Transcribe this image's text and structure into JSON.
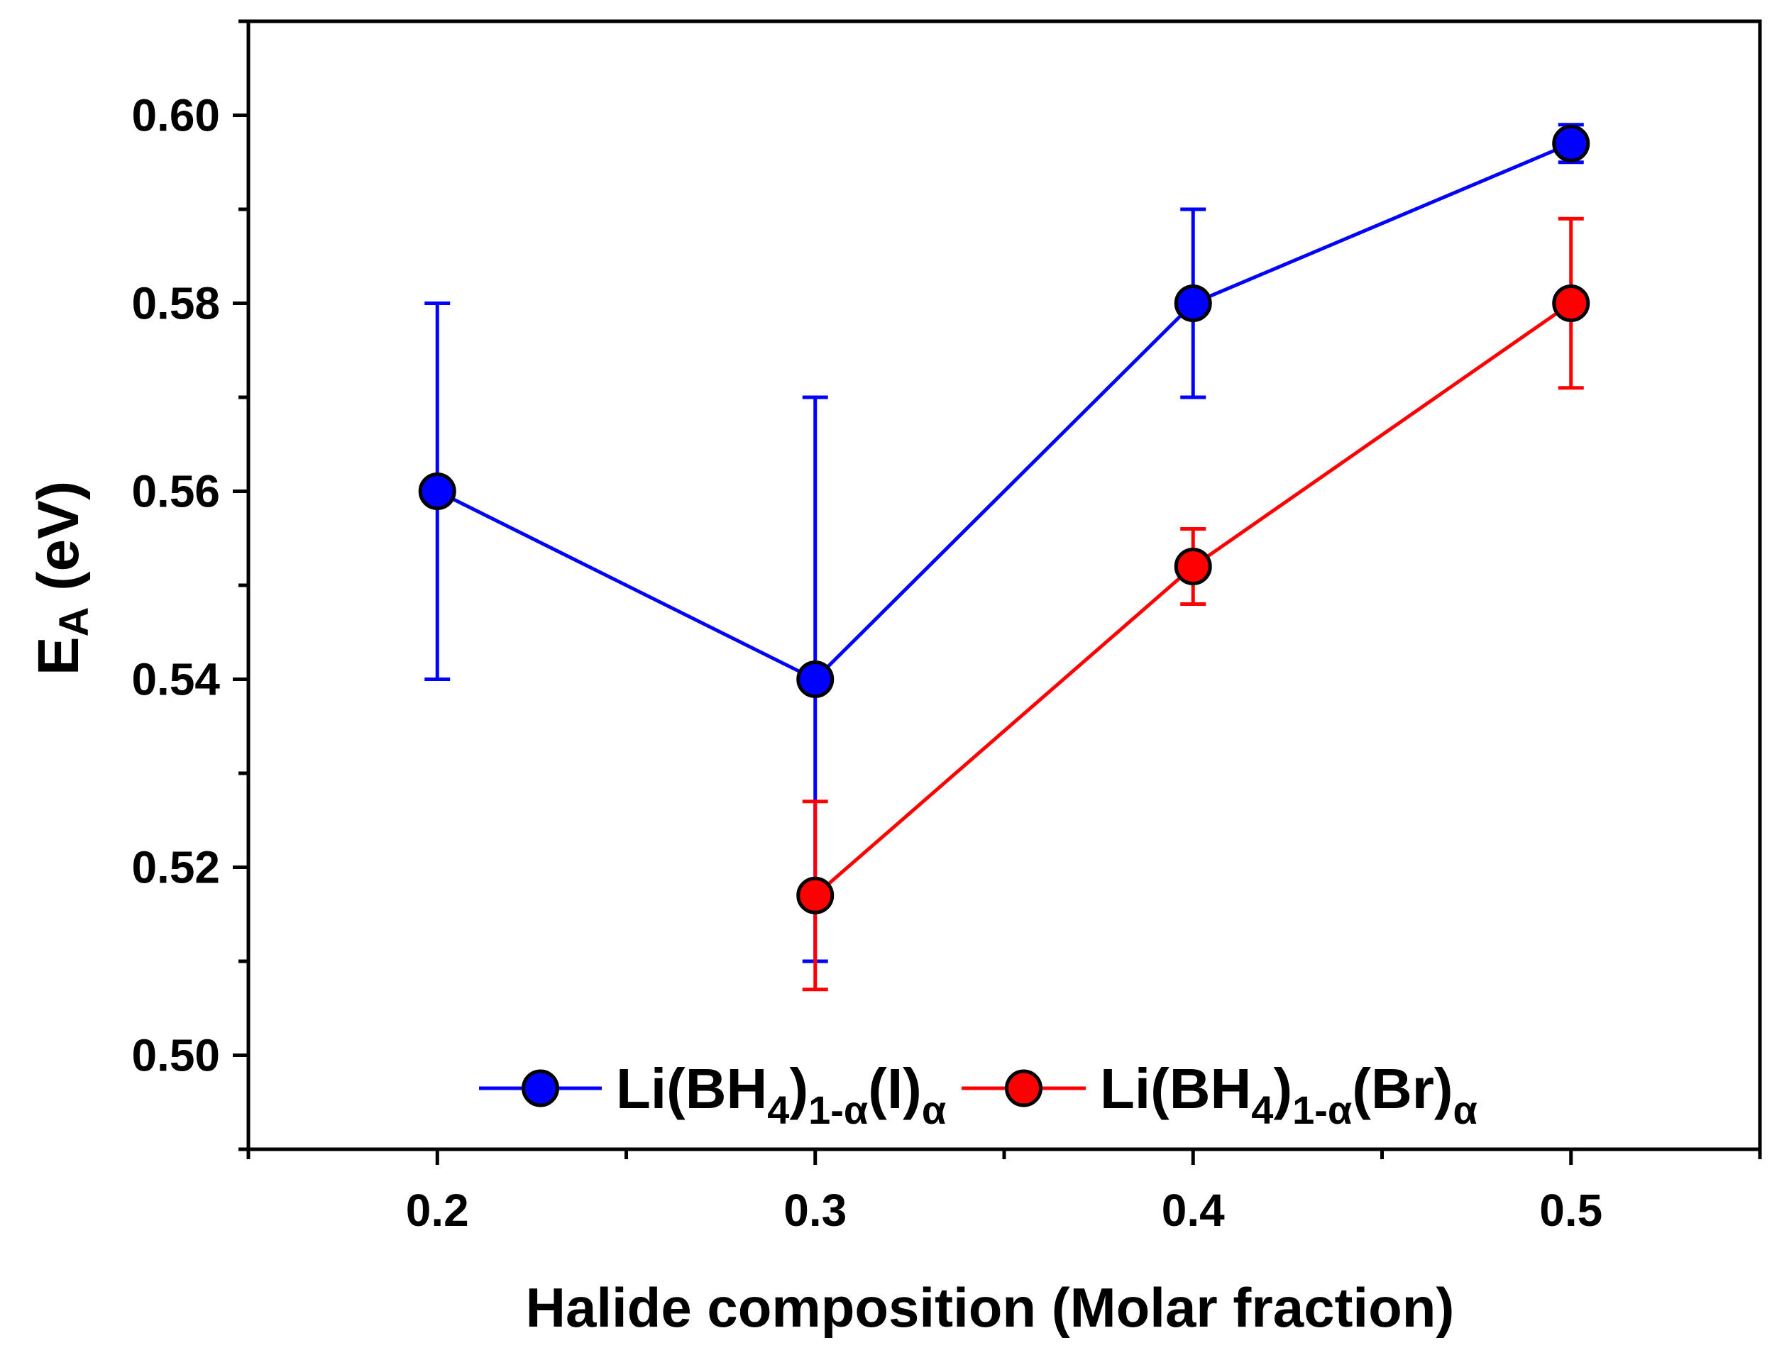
{
  "chart_data": {
    "type": "line",
    "title": "",
    "xlabel": "Halide composition (Molar fraction)",
    "ylabel": "E_A (eV)",
    "ylabel_main": "E",
    "ylabel_sub": "A",
    "ylabel_rest": " (eV)",
    "xlim": [
      0.15,
      0.55
    ],
    "ylim": [
      0.49,
      0.61
    ],
    "x_ticks": [
      0.2,
      0.3,
      0.4,
      0.5
    ],
    "x_tick_labels": [
      "0.2",
      "0.3",
      "0.4",
      "0.5"
    ],
    "y_ticks": [
      0.5,
      0.52,
      0.54,
      0.56,
      0.58,
      0.6
    ],
    "y_tick_labels": [
      "0.50",
      "0.52",
      "0.54",
      "0.56",
      "0.58",
      "0.60"
    ],
    "grid": false,
    "legend_position": "bottom-center",
    "series": [
      {
        "name": "Li(BH4)1-α(I)α",
        "legend": {
          "main": "Li(BH",
          "sub1": "4",
          "mid": ")",
          "sub2": "1-α",
          "rest": "(I)",
          "sub3": "α"
        },
        "color": "#0000ff",
        "marker_color": "#0000ff",
        "x": [
          0.2,
          0.3,
          0.4,
          0.5
        ],
        "y": [
          0.56,
          0.54,
          0.58,
          0.597
        ],
        "err_low": [
          0.54,
          0.51,
          0.57,
          0.595
        ],
        "err_high": [
          0.58,
          0.57,
          0.59,
          0.599
        ]
      },
      {
        "name": "Li(BH4)1-α(Br)α",
        "legend": {
          "main": "Li(BH",
          "sub1": "4",
          "mid": ")",
          "sub2": "1-α",
          "rest": "(Br)",
          "sub3": "α"
        },
        "color": "#ff0000",
        "marker_color": "#ff0000",
        "x": [
          0.3,
          0.4,
          0.5
        ],
        "y": [
          0.517,
          0.552,
          0.58
        ],
        "err_low": [
          0.507,
          0.548,
          0.571
        ],
        "err_high": [
          0.527,
          0.556,
          0.589
        ]
      }
    ]
  }
}
